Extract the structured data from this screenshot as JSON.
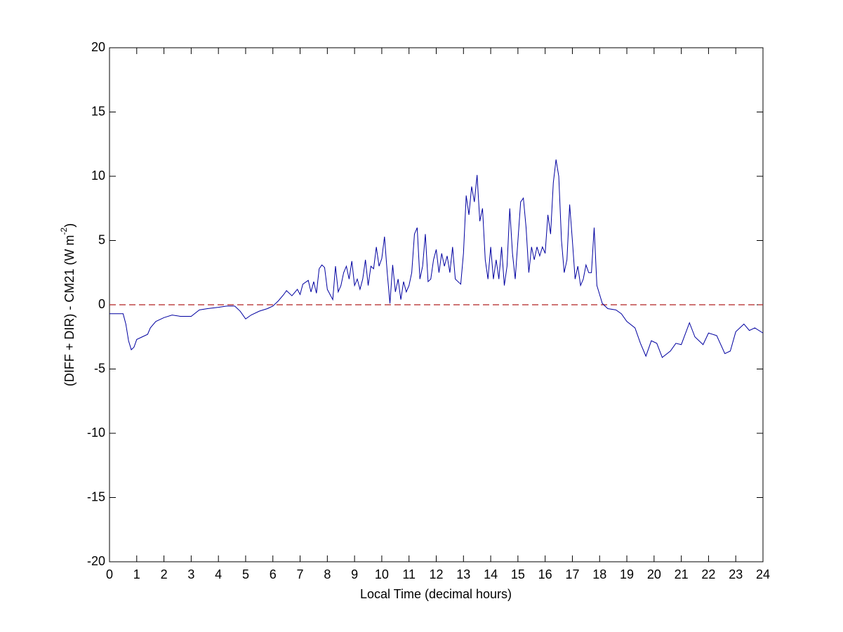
{
  "chart_data": {
    "type": "line",
    "xlabel": "Local Time (decimal hours)",
    "ylabel": {
      "text": "(DIFF + DIR) - CM21 (W m",
      "superscript": "-2",
      "suffix": ")"
    },
    "xlim": [
      0,
      24
    ],
    "ylim": [
      -20,
      20
    ],
    "xticks": [
      0,
      1,
      2,
      3,
      4,
      5,
      6,
      7,
      8,
      9,
      10,
      11,
      12,
      13,
      14,
      15,
      16,
      17,
      18,
      19,
      20,
      21,
      22,
      23,
      24
    ],
    "yticks": [
      -20,
      -15,
      -10,
      -5,
      0,
      5,
      10,
      15,
      20
    ],
    "grid": false,
    "hlines": [
      {
        "value": 0,
        "color": "#b22222",
        "style": "dashed"
      }
    ],
    "x": [
      0,
      0.3,
      0.5,
      0.6,
      0.7,
      0.8,
      0.9,
      1.0,
      1.2,
      1.4,
      1.5,
      1.7,
      2.0,
      2.3,
      2.6,
      3.0,
      3.3,
      3.6,
      4.0,
      4.3,
      4.6,
      4.8,
      5.0,
      5.2,
      5.5,
      5.8,
      6.0,
      6.2,
      6.4,
      6.5,
      6.7,
      6.9,
      7.0,
      7.1,
      7.3,
      7.4,
      7.5,
      7.6,
      7.7,
      7.8,
      7.9,
      8.0,
      8.1,
      8.2,
      8.3,
      8.4,
      8.5,
      8.6,
      8.7,
      8.8,
      8.9,
      9.0,
      9.1,
      9.2,
      9.3,
      9.4,
      9.5,
      9.6,
      9.7,
      9.8,
      9.9,
      10.0,
      10.1,
      10.2,
      10.3,
      10.4,
      10.5,
      10.6,
      10.7,
      10.8,
      10.9,
      11.0,
      11.1,
      11.2,
      11.3,
      11.4,
      11.5,
      11.6,
      11.7,
      11.8,
      11.9,
      12.0,
      12.1,
      12.2,
      12.3,
      12.4,
      12.5,
      12.6,
      12.7,
      12.8,
      12.9,
      13.0,
      13.1,
      13.2,
      13.3,
      13.4,
      13.5,
      13.6,
      13.7,
      13.8,
      13.9,
      14.0,
      14.1,
      14.2,
      14.3,
      14.4,
      14.5,
      14.6,
      14.7,
      14.8,
      14.9,
      15.0,
      15.1,
      15.2,
      15.3,
      15.4,
      15.5,
      15.6,
      15.7,
      15.8,
      15.9,
      16.0,
      16.1,
      16.2,
      16.3,
      16.4,
      16.5,
      16.6,
      16.7,
      16.8,
      16.9,
      17.0,
      17.1,
      17.2,
      17.3,
      17.4,
      17.5,
      17.6,
      17.7,
      17.8,
      17.9,
      18.0,
      18.1,
      18.3,
      18.6,
      18.8,
      19.0,
      19.3,
      19.5,
      19.7,
      19.9,
      20.1,
      20.3,
      20.6,
      20.8,
      21.0,
      21.3,
      21.5,
      21.8,
      22.0,
      22.3,
      22.6,
      22.8,
      23.0,
      23.3,
      23.5,
      23.7,
      24.0
    ],
    "series": [
      {
        "color": "#0000a0",
        "values": [
          -0.7,
          -0.7,
          -0.7,
          -1.5,
          -2.8,
          -3.5,
          -3.3,
          -2.7,
          -2.5,
          -2.3,
          -1.8,
          -1.3,
          -1.0,
          -0.8,
          -0.9,
          -0.9,
          -0.4,
          -0.3,
          -0.2,
          -0.1,
          -0.1,
          -0.5,
          -1.1,
          -0.8,
          -0.5,
          -0.3,
          -0.1,
          0.3,
          0.8,
          1.1,
          0.7,
          1.2,
          0.8,
          1.6,
          1.9,
          1.0,
          1.8,
          0.9,
          2.8,
          3.1,
          2.9,
          1.2,
          0.8,
          0.4,
          3.0,
          1.0,
          1.5,
          2.5,
          3.0,
          2.0,
          3.4,
          1.5,
          2.0,
          1.2,
          2.0,
          3.5,
          1.5,
          3.0,
          2.8,
          4.5,
          3.0,
          3.6,
          5.3,
          2.5,
          0.1,
          3.1,
          1.0,
          2.0,
          0.4,
          1.8,
          1.0,
          1.5,
          2.5,
          5.5,
          6.0,
          2.0,
          3.0,
          5.5,
          1.8,
          2.0,
          3.5,
          4.3,
          2.5,
          4.0,
          3.0,
          3.8,
          2.5,
          4.5,
          2.0,
          1.8,
          1.6,
          4.0,
          8.5,
          7.0,
          9.2,
          8.0,
          10.1,
          6.5,
          7.5,
          3.5,
          2.0,
          4.5,
          2.0,
          3.5,
          2.0,
          4.5,
          1.5,
          3.0,
          7.5,
          4.0,
          2.0,
          5.0,
          8.0,
          8.3,
          6.0,
          2.5,
          4.5,
          3.5,
          4.5,
          3.8,
          4.5,
          4.0,
          7.0,
          5.5,
          9.5,
          11.3,
          10.0,
          5.0,
          2.5,
          3.5,
          7.8,
          5.0,
          2.0,
          3.0,
          1.5,
          2.0,
          3.1,
          2.5,
          2.5,
          6.0,
          1.5,
          0.8,
          0.1,
          -0.3,
          -0.4,
          -0.7,
          -1.3,
          -1.8,
          -3.0,
          -4.0,
          -2.8,
          -3.0,
          -4.1,
          -3.6,
          -3.0,
          -3.1,
          -1.4,
          -2.5,
          -3.1,
          -2.2,
          -2.4,
          -3.8,
          -3.6,
          -2.1,
          -1.5,
          -2.0,
          -1.8,
          -2.2
        ]
      }
    ]
  }
}
